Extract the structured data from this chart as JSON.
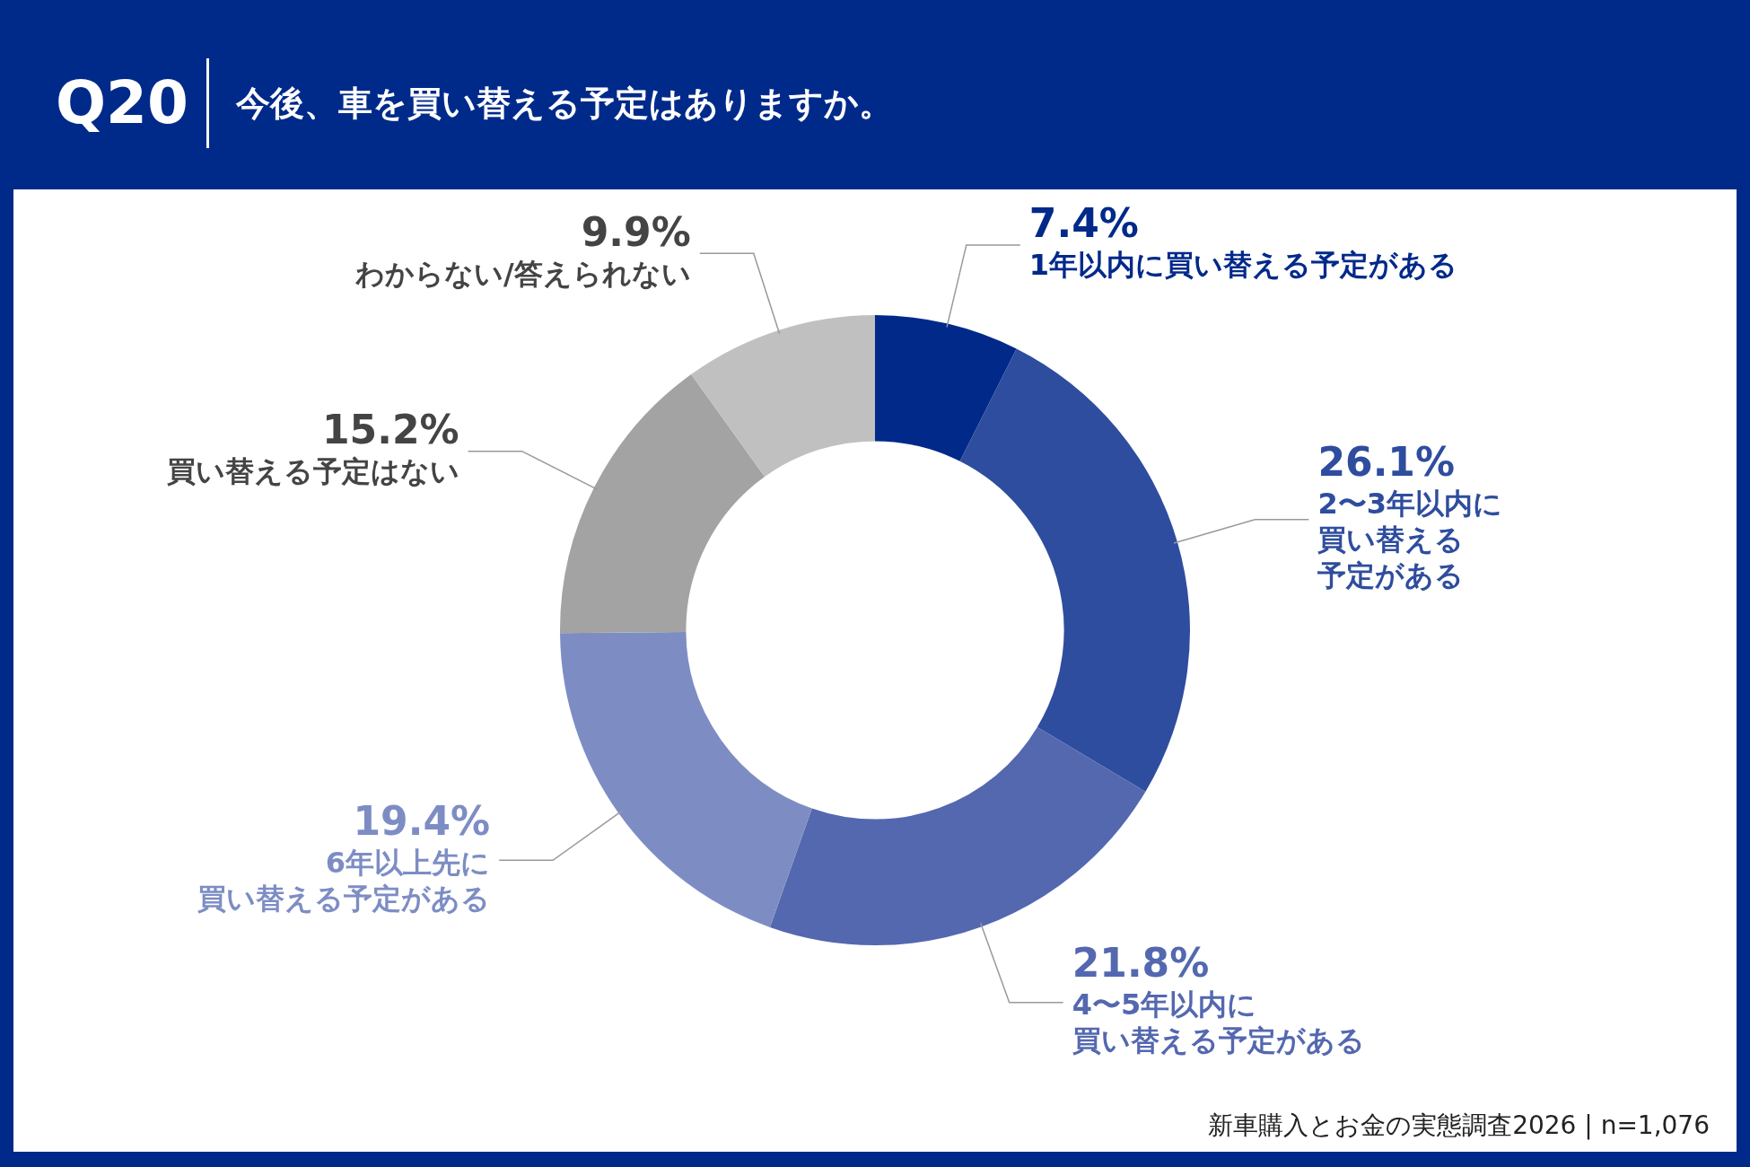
{
  "chart_data": {
    "type": "donut",
    "title": "Q20",
    "subtitle": "今後、車を買い替える予定はありますか。",
    "categories": [
      "1年以内に買い替える予定がある",
      "2〜3年以内に買い替える予定がある",
      "4〜5年以内に買い替える予定がある",
      "6年以上先に買い替える予定がある",
      "買い替える予定はない",
      "わからない/答えられない"
    ],
    "values": [
      7.4,
      26.1,
      21.8,
      19.4,
      15.2,
      9.9
    ],
    "value_labels": [
      "7.4%",
      "26.1%",
      "21.8%",
      "19.4%",
      "15.2%",
      "9.9%"
    ],
    "colors": [
      "#00298a",
      "#2f4d9e",
      "#5468b0",
      "#7d8dc4",
      "#a3a3a3",
      "#c0c0c0"
    ],
    "legend": false,
    "annotations": [
      "新車購入とお金の実態調査2026 | n=1,076"
    ]
  }
}
